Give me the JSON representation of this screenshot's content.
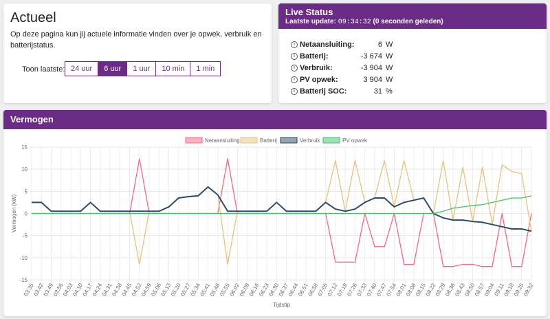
{
  "actueel": {
    "title": "Actueel",
    "text": "Op deze pagina kun jij actuele informatie vinden over je opwek, verbruik en batterijstatus.",
    "toon_label": "Toon laatste:",
    "buttons": [
      "24 uur",
      "6 uur",
      "1 uur",
      "10 min",
      "1 min"
    ],
    "active": 1
  },
  "live_status": {
    "title": "Live Status",
    "update_label": "Laatste update:",
    "update_time": "09:34:32",
    "update_suffix": "(0 seconden geleden)",
    "rows": [
      {
        "label": "Netaansluiting:",
        "value": "6",
        "unit": "W"
      },
      {
        "label": "Batterij:",
        "value": "-3 674",
        "unit": "W"
      },
      {
        "label": "Verbruik:",
        "value": "-3 904",
        "unit": "W"
      },
      {
        "label": "PV opwek:",
        "value": "3 904",
        "unit": "W"
      },
      {
        "label": "Batterij SOC:",
        "value": "31",
        "unit": "%"
      }
    ]
  },
  "chart_data": {
    "type": "line",
    "title": "Vermogen",
    "x_label": "Tijdstip",
    "y_label": "Vermogen (kW)",
    "categories": [
      "03:35",
      "03:42",
      "03:49",
      "03:56",
      "04:03",
      "04:10",
      "04:17",
      "04:24",
      "04:31",
      "04:38",
      "04:45",
      "04:52",
      "04:59",
      "05:06",
      "05:13",
      "05:20",
      "05:27",
      "05:34",
      "05:41",
      "05:48",
      "05:55",
      "06:02",
      "06:09",
      "06:16",
      "06:23",
      "06:30",
      "06:37",
      "06:44",
      "06:51",
      "06:58",
      "07:05",
      "07:12",
      "07:19",
      "07:26",
      "07:33",
      "07:40",
      "07:47",
      "07:54",
      "08:01",
      "08:08",
      "08:15",
      "08:22",
      "08:29",
      "08:36",
      "08:43",
      "08:50",
      "08:57",
      "09:04",
      "09:11",
      "09:18",
      "09:25",
      "09:32"
    ],
    "series": [
      {
        "name": "Netaansluiting",
        "color": "#ff6384",
        "values": [
          0,
          0,
          0,
          0,
          0,
          0,
          0,
          0,
          0,
          0,
          0,
          12.4,
          0,
          0,
          0,
          0,
          0,
          0,
          0,
          0,
          12.4,
          0,
          0,
          0,
          0,
          0,
          0,
          0,
          0,
          0,
          0,
          -11,
          -11,
          -11,
          0,
          -7.5,
          -7.5,
          0,
          -11.5,
          -11.5,
          0,
          0,
          -12,
          -12,
          -11.5,
          -11.5,
          -12,
          -12,
          0,
          -12,
          -12,
          0
        ]
      },
      {
        "name": "Batterij",
        "color": "#e8c27a",
        "values": [
          2.5,
          2.5,
          0.5,
          0.5,
          0.5,
          0.5,
          2.5,
          0.5,
          0.5,
          0.5,
          0.5,
          -11.5,
          0.5,
          0.5,
          1.5,
          3.5,
          3.8,
          4,
          6,
          4.2,
          -11.5,
          0.5,
          0.5,
          0.5,
          0.5,
          2.5,
          0.5,
          0.5,
          0.5,
          0.5,
          2.5,
          12,
          0.5,
          12,
          2.5,
          3.5,
          12,
          1.5,
          12,
          3,
          3.5,
          0,
          12,
          -1.5,
          10.5,
          -1.8,
          10.5,
          -2.5,
          11,
          9.5,
          9,
          -4
        ]
      },
      {
        "name": "Verbruik",
        "color": "#2c4a6b",
        "values": [
          2.5,
          2.5,
          0.5,
          0.5,
          0.5,
          0.5,
          2.5,
          0.5,
          0.5,
          0.5,
          0.5,
          0.5,
          0.5,
          0.5,
          1.5,
          3.5,
          3.8,
          4,
          6,
          4.2,
          0.5,
          0.5,
          0.5,
          0.5,
          0.5,
          2.5,
          0.5,
          0.5,
          0.5,
          0.5,
          2.5,
          1,
          0.5,
          1,
          2.5,
          3.5,
          3.5,
          1.5,
          2.5,
          3,
          3.5,
          0,
          -1,
          -1.5,
          -1.5,
          -1.8,
          -2,
          -2.5,
          -3,
          -3.5,
          -3.5,
          -4
        ]
      },
      {
        "name": "PV opwek",
        "color": "#3cc36a",
        "values": [
          0,
          0,
          0,
          0,
          0,
          0,
          0,
          0,
          0,
          0,
          0,
          0,
          0,
          0,
          0,
          0,
          0,
          0,
          0,
          0,
          0,
          0,
          0,
          0,
          0,
          0,
          0,
          0,
          0,
          0,
          0,
          0,
          0,
          0,
          0,
          0,
          0,
          0,
          0,
          0,
          0,
          0,
          0.5,
          1.2,
          1.5,
          1.8,
          2,
          2.5,
          3,
          3.5,
          3.5,
          4
        ]
      }
    ],
    "ylim": [
      -15,
      15
    ],
    "yticks": [
      -15,
      -10,
      -5,
      0,
      5,
      10,
      15
    ],
    "grid": true,
    "legend": "top"
  }
}
